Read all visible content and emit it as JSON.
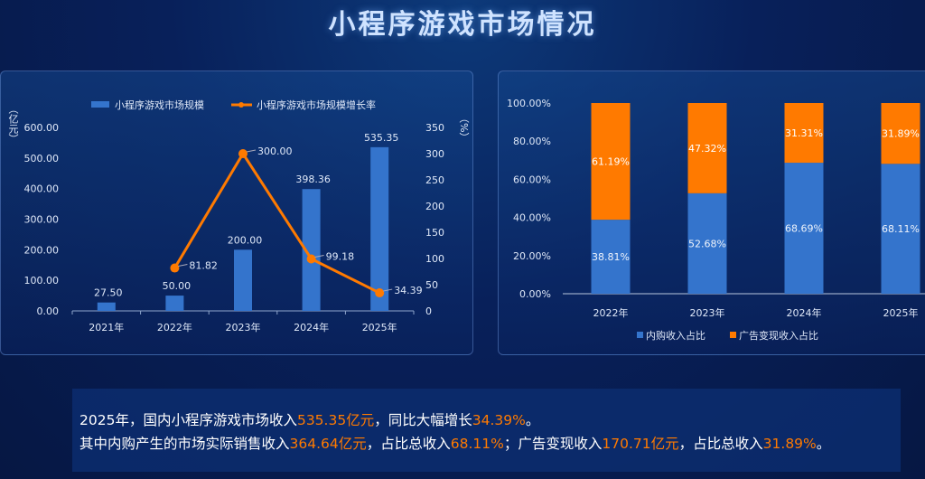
{
  "title": "小程序游戏市场情况",
  "colors": {
    "bar": "#3474cc",
    "line": "#ff7a00",
    "inner": "#3474cc",
    "ad": "#ff7a00"
  },
  "chart_data": [
    {
      "type": "bar+line",
      "categories": [
        "2021年",
        "2022年",
        "2023年",
        "2024年",
        "2025年"
      ],
      "series": [
        {
          "name": "小程序游戏市场规模",
          "type": "bar",
          "axis": "left",
          "values": [
            27.5,
            50.0,
            200.0,
            398.36,
            535.35
          ],
          "labels": [
            "27.50",
            "50.00",
            "200.00",
            "398.36",
            "535.35"
          ]
        },
        {
          "name": "小程序游戏市场规模增长率",
          "type": "line",
          "axis": "right",
          "values": [
            null,
            81.82,
            300.0,
            99.18,
            34.39
          ],
          "labels": [
            "",
            "81.82",
            "300.00",
            "99.18",
            "34.39"
          ]
        }
      ],
      "ylabel_left": "（亿元）",
      "ylabel_right": "（%）",
      "ylim_left": [
        0,
        600
      ],
      "yticks_left": [
        "0.00",
        "100.00",
        "200.00",
        "300.00",
        "400.00",
        "500.00",
        "600.00"
      ],
      "ylim_right": [
        0,
        350
      ],
      "yticks_right": [
        "0",
        "50",
        "100",
        "150",
        "200",
        "250",
        "300",
        "350"
      ],
      "legend": "top",
      "grid": false
    },
    {
      "type": "stacked-bar",
      "categories": [
        "2022年",
        "2023年",
        "2024年",
        "2025年"
      ],
      "series": [
        {
          "name": "内购收入占比",
          "values": [
            38.81,
            52.68,
            68.69,
            68.11
          ],
          "labels": [
            "38.81%",
            "52.68%",
            "68.69%",
            "68.11%"
          ]
        },
        {
          "name": "广告变现收入占比",
          "values": [
            61.19,
            47.32,
            31.31,
            31.89
          ],
          "labels": [
            "61.19%",
            "47.32%",
            "31.31%",
            "31.89%"
          ]
        }
      ],
      "ylim": [
        0,
        100
      ],
      "yticks": [
        "0.00%",
        "20.00%",
        "40.00%",
        "60.00%",
        "80.00%",
        "100.00%"
      ],
      "legend": "bottom",
      "grid": false
    }
  ],
  "summary": {
    "l1": [
      "2025年，国内小程序游戏市场收入",
      "535.35亿元",
      "，同比大幅增长",
      "34.39%",
      "。"
    ],
    "l2": [
      "其中内购产生的市场实际销售收入",
      "364.64亿元",
      "，占比总收入",
      "68.11%",
      "；广告变现收入",
      "170.71亿元",
      "，占比总收入",
      "31.89%",
      "。"
    ]
  }
}
